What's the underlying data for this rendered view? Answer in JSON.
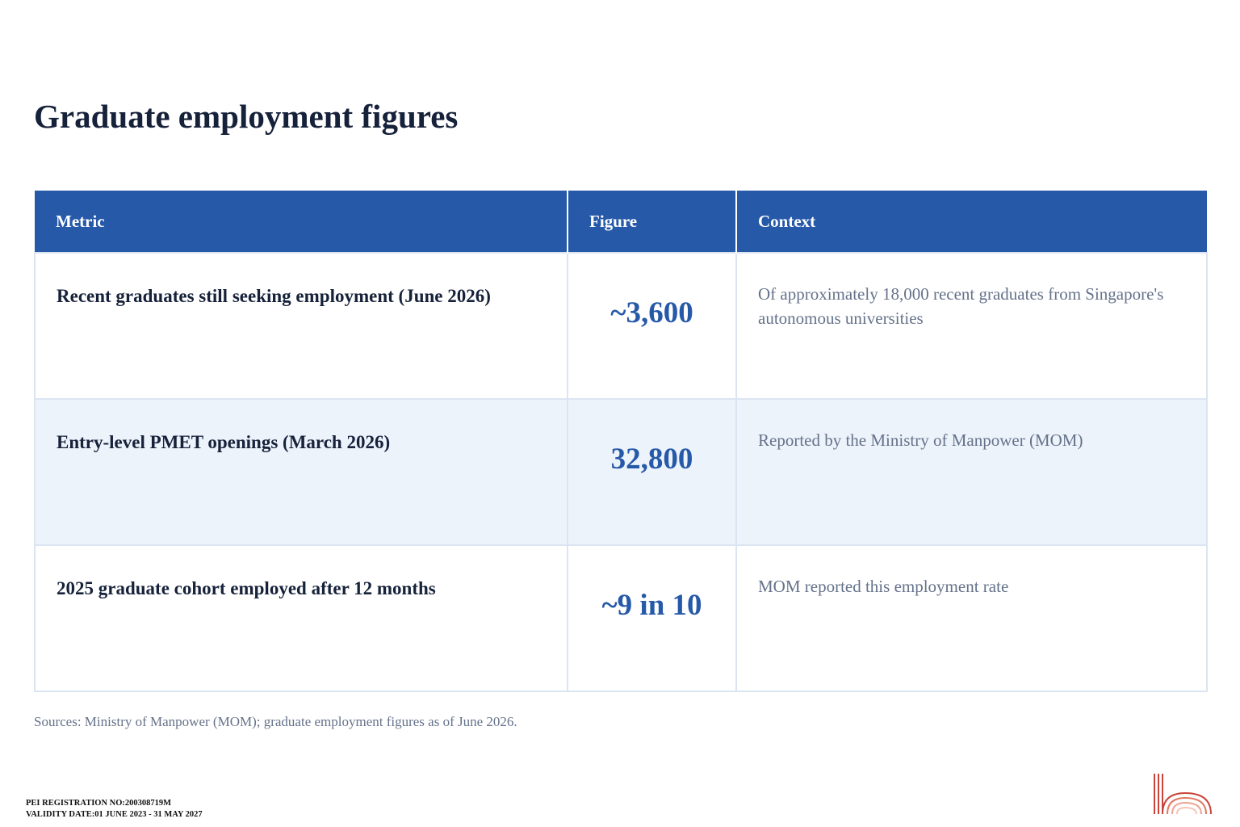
{
  "page": {
    "title": "Graduate employment figures",
    "sources": "Sources: Ministry of Manpower (MOM); graduate employment figures as of June 2026."
  },
  "table": {
    "headers": {
      "metric": "Metric",
      "figure": "Figure",
      "context": "Context"
    },
    "rows": [
      {
        "metric": "Recent graduates still seeking employment (June 2026)",
        "figure": "~3,600",
        "context": "Of approximately 18,000 recent graduates from Singapore's autonomous universities"
      },
      {
        "metric": "Entry-level PMET openings (March 2026)",
        "figure": "32,800",
        "context": "Reported by the Ministry of Manpower (MOM)"
      },
      {
        "metric": "2025 graduate cohort employed after 12 months",
        "figure": "~9 in 10",
        "context": "MOM reported this employment rate"
      }
    ]
  },
  "footer": {
    "registration": "PEI REGISTRATION NO:200308719M",
    "validity": "VALIDITY DATE:01 JUNE 2023 - 31 MAY 2027",
    "logo_icon": "arch-logo-icon"
  },
  "colors": {
    "header_bg": "#2659a8",
    "figure_text": "#2659a8",
    "title_text": "#16213a",
    "alt_row_bg": "#edf3fb",
    "logo_accent": "#c9443a"
  }
}
